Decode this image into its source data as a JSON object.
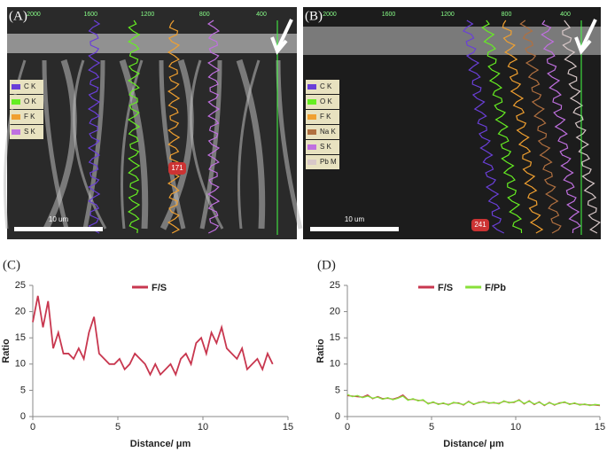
{
  "images": [
    {
      "label": "(A)",
      "scale_bar": "10 um",
      "marker": "171",
      "top_ticks": [
        "2000",
        "1600",
        "1200",
        "800",
        "400"
      ],
      "legend": [
        {
          "name": "C K",
          "color": "#6a3fd8"
        },
        {
          "name": "O K",
          "color": "#66ee22"
        },
        {
          "name": "F K",
          "color": "#f0a030"
        },
        {
          "name": "S K",
          "color": "#c070e0"
        }
      ]
    },
    {
      "label": "(B)",
      "scale_bar": "10 um",
      "marker": "241",
      "top_ticks": [
        "2000",
        "1600",
        "1200",
        "800",
        "400"
      ],
      "legend": [
        {
          "name": "C K",
          "color": "#6a3fd8"
        },
        {
          "name": "O K",
          "color": "#66ee22"
        },
        {
          "name": "F K",
          "color": "#f0a030"
        },
        {
          "name": "Na K",
          "color": "#b07040"
        },
        {
          "name": "S K",
          "color": "#c070e0"
        },
        {
          "name": "Pb M",
          "color": "#d8c8c8"
        }
      ]
    }
  ],
  "chart_data": [
    {
      "type": "line",
      "panel_label": "(C)",
      "x_label": "Distance/ μm",
      "y_label": "Ratio",
      "xlim": [
        0,
        15
      ],
      "xticks": [
        0,
        5,
        10,
        15
      ],
      "ylim": [
        0,
        25
      ],
      "yticks": [
        0,
        5,
        10,
        15,
        20,
        25
      ],
      "x": [
        0,
        0.3,
        0.6,
        0.9,
        1.2,
        1.5,
        1.8,
        2.1,
        2.4,
        2.7,
        3.0,
        3.3,
        3.6,
        3.9,
        4.2,
        4.5,
        4.8,
        5.1,
        5.4,
        5.7,
        6.0,
        6.3,
        6.6,
        6.9,
        7.2,
        7.5,
        7.8,
        8.1,
        8.4,
        8.7,
        9.0,
        9.3,
        9.6,
        9.9,
        10.2,
        10.5,
        10.8,
        11.1,
        11.4,
        11.7,
        12.0,
        12.3,
        12.6,
        12.9,
        13.2,
        13.5,
        13.8,
        14.1
      ],
      "series": [
        {
          "name": "F/S",
          "color": "#c8374f",
          "values": [
            18,
            23,
            17,
            22,
            13,
            16,
            12,
            12,
            11,
            13,
            11,
            16,
            19,
            12,
            11,
            10,
            10,
            11,
            9,
            10,
            12,
            11,
            10,
            8,
            10,
            8,
            9,
            10,
            8,
            11,
            12,
            10,
            14,
            15,
            12,
            16,
            14,
            17,
            13,
            12,
            11,
            13,
            9,
            10,
            11,
            9,
            12,
            10
          ]
        }
      ]
    },
    {
      "type": "line",
      "panel_label": "(D)",
      "x_label": "Distance/ μm",
      "y_label": "Ratio",
      "xlim": [
        0,
        15
      ],
      "xticks": [
        0,
        5,
        10,
        15
      ],
      "ylim": [
        0,
        25
      ],
      "yticks": [
        0,
        5,
        10,
        15,
        20,
        25
      ],
      "x": [
        0,
        0.3,
        0.6,
        0.9,
        1.2,
        1.5,
        1.8,
        2.1,
        2.4,
        2.7,
        3.0,
        3.3,
        3.6,
        3.9,
        4.2,
        4.5,
        4.8,
        5.1,
        5.4,
        5.7,
        6.0,
        6.3,
        6.6,
        6.9,
        7.2,
        7.5,
        7.8,
        8.1,
        8.4,
        8.7,
        9.0,
        9.3,
        9.6,
        9.9,
        10.2,
        10.5,
        10.8,
        11.1,
        11.4,
        11.7,
        12.0,
        12.3,
        12.6,
        12.9,
        13.2,
        13.5,
        13.8,
        14.1,
        14.4,
        14.7,
        15.0
      ],
      "series": [
        {
          "name": "F/S",
          "color": "#c8374f",
          "values": [
            4.0,
            3.9,
            3.8,
            3.7,
            4.1,
            3.4,
            3.8,
            3.4,
            3.5,
            3.3,
            3.6,
            4.1,
            3.2,
            3.3,
            3.1,
            3.1,
            2.5,
            2.7,
            2.4,
            2.5,
            2.3,
            2.6,
            2.6,
            2.2,
            2.9,
            2.3,
            2.7,
            2.8,
            2.6,
            2.6,
            2.5,
            2.9,
            2.7,
            2.7,
            3.2,
            2.4,
            3.0,
            2.3,
            2.8,
            2.1,
            2.7,
            2.2,
            2.6,
            2.7,
            2.4,
            2.5,
            2.3,
            2.3,
            2.2,
            2.2,
            2.1
          ]
        },
        {
          "name": "F/Pb",
          "color": "#88e03a",
          "values": [
            4.2,
            3.8,
            4.0,
            3.6,
            3.9,
            3.5,
            3.7,
            3.3,
            3.6,
            3.2,
            3.5,
            3.9,
            3.1,
            3.4,
            3.0,
            3.2,
            2.4,
            2.8,
            2.3,
            2.6,
            2.2,
            2.7,
            2.5,
            2.3,
            2.8,
            2.4,
            2.6,
            2.9,
            2.5,
            2.7,
            2.4,
            3.0,
            2.6,
            2.8,
            3.1,
            2.5,
            2.9,
            2.4,
            2.7,
            2.2,
            2.6,
            2.3,
            2.5,
            2.8,
            2.3,
            2.6,
            2.2,
            2.4,
            2.1,
            2.3,
            2.2
          ]
        }
      ]
    }
  ]
}
